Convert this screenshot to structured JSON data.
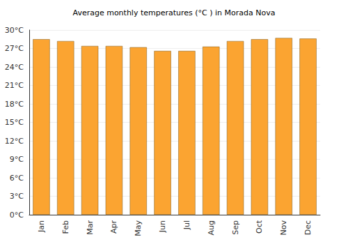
{
  "chart_data": {
    "type": "bar",
    "title": "Average monthly temperatures (°C ) in Morada Nova",
    "categories": [
      "Jan",
      "Feb",
      "Mar",
      "Apr",
      "May",
      "Jun",
      "Jul",
      "Aug",
      "Sep",
      "Oct",
      "Nov",
      "Dec"
    ],
    "values": [
      28.5,
      28.2,
      27.4,
      27.4,
      27.2,
      26.6,
      26.6,
      27.3,
      28.2,
      28.5,
      28.7,
      28.6
    ],
    "color": "#fba431",
    "ylim": [
      0,
      30
    ],
    "yticks": [
      {
        "value": 0,
        "label": "0°C"
      },
      {
        "value": 3,
        "label": "3°C"
      },
      {
        "value": 6,
        "label": "6°C"
      },
      {
        "value": 9,
        "label": "9°C"
      },
      {
        "value": 12,
        "label": "12°C"
      },
      {
        "value": 15,
        "label": "15°C"
      },
      {
        "value": 18,
        "label": "18°C"
      },
      {
        "value": 21,
        "label": "21°C"
      },
      {
        "value": 24,
        "label": "24°C"
      },
      {
        "value": 27,
        "label": "27°C"
      },
      {
        "value": 30,
        "label": "30°C"
      }
    ],
    "grid": true
  }
}
